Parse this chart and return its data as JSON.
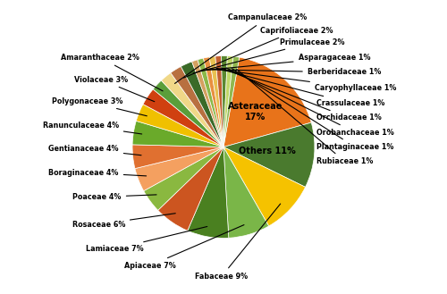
{
  "labels": [
    "Asteraceae",
    "Others",
    "Fabaceae",
    "Apiaceae",
    "Lamiaceae",
    "Rosaceae",
    "Poaceae",
    "Boraginaceae",
    "Gentianaceae",
    "Ranunculaceae",
    "Polygonaceae",
    "Violaceae",
    "Amaranthaceae",
    "Campanulaceae",
    "Caprifoliaceae",
    "Primulaceae",
    "Asparagaceae",
    "Berberidaceae",
    "Caryophyllaceae",
    "Crassulaceae",
    "Orchidaceae",
    "Orobanchaceae",
    "Plantaginaceae",
    "Rubiaceae"
  ],
  "values": [
    17,
    11,
    9,
    7,
    7,
    6,
    4,
    4,
    4,
    4,
    3,
    3,
    2,
    2,
    2,
    2,
    1,
    1,
    1,
    1,
    1,
    1,
    1,
    1
  ],
  "colors": [
    "#E8731A",
    "#4a7a2e",
    "#F5C200",
    "#7ab648",
    "#4a8020",
    "#cc5520",
    "#8ab840",
    "#f4a060",
    "#e07030",
    "#6aaa2a",
    "#f0c000",
    "#d04010",
    "#5a9e3a",
    "#f0d888",
    "#b87040",
    "#3a6a28",
    "#d4a060",
    "#8ab848",
    "#e89040",
    "#e8c050",
    "#c46030",
    "#5a8830",
    "#c0d868",
    "#90b850"
  ],
  "label_annotations": {
    "Campanulaceae": [
      0.05,
      1.42,
      "left"
    ],
    "Caprifoliaceae": [
      0.4,
      1.28,
      "left"
    ],
    "Primulaceae": [
      0.62,
      1.15,
      "left"
    ],
    "Asparagaceae": [
      0.82,
      0.98,
      "left"
    ],
    "Berberidaceae": [
      0.92,
      0.82,
      "left"
    ],
    "Caryophyllaceae": [
      1.0,
      0.65,
      "left"
    ],
    "Crassulaceae": [
      1.02,
      0.48,
      "left"
    ],
    "Orchidaceae": [
      1.02,
      0.32,
      "left"
    ],
    "Orobanchaceae": [
      1.02,
      0.16,
      "left"
    ],
    "Plantaginaceae": [
      1.02,
      0.0,
      "left"
    ],
    "Rubiaceae": [
      1.02,
      -0.16,
      "left"
    ],
    "Fabaceae": [
      -0.02,
      -1.42,
      "center"
    ],
    "Apiaceae": [
      -0.52,
      -1.3,
      "right"
    ],
    "Lamiaceae": [
      -0.88,
      -1.12,
      "right"
    ],
    "Rosaceae": [
      -1.08,
      -0.85,
      "right"
    ],
    "Poaceae": [
      -1.12,
      -0.55,
      "right"
    ],
    "Boraginaceae": [
      -1.15,
      -0.28,
      "right"
    ],
    "Gentianaceae": [
      -1.15,
      -0.02,
      "right"
    ],
    "Ranunculaceae": [
      -1.15,
      0.24,
      "right"
    ],
    "Polygonaceae": [
      -1.1,
      0.5,
      "right"
    ],
    "Violaceae": [
      -1.05,
      0.74,
      "right"
    ],
    "Amaranthaceae": [
      -0.92,
      0.98,
      "right"
    ]
  },
  "startangle": 80,
  "figsize": [
    5.0,
    3.29
  ],
  "dpi": 100
}
